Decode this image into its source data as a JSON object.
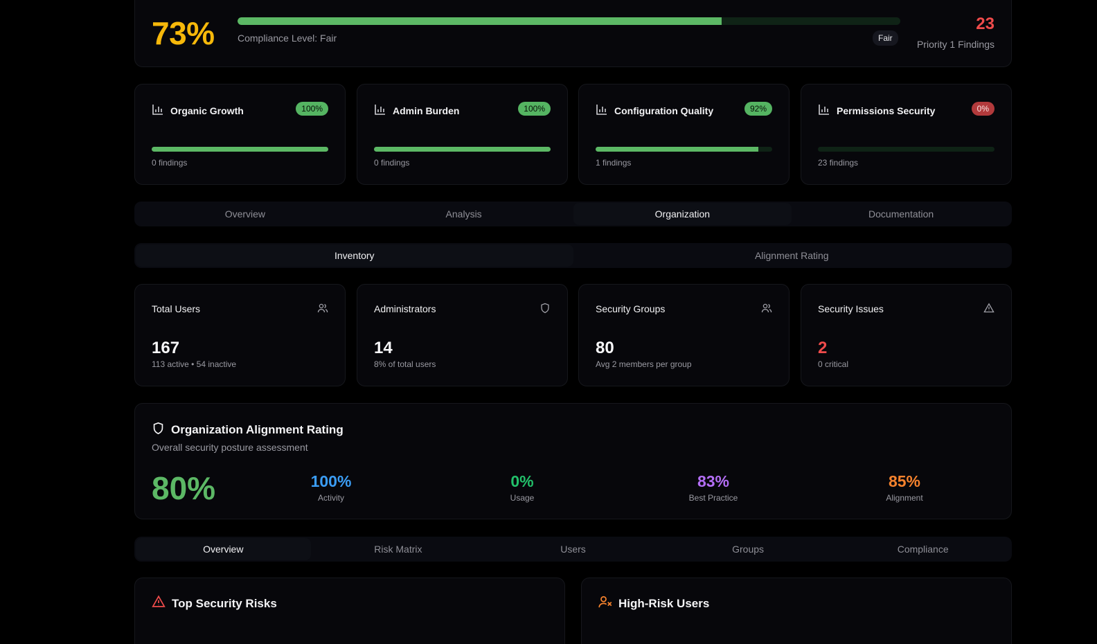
{
  "compliance": {
    "score": "73%",
    "progress": 0.73,
    "level_label": "Compliance Level: Fair",
    "pill": "Fair",
    "priority_count": "23",
    "priority_label": "Priority 1 Findings"
  },
  "metrics": [
    {
      "title": "Organic Growth",
      "badge": "100%",
      "progress": 1.0,
      "findings": "0 findings",
      "badge_color": "#55b462"
    },
    {
      "title": "Admin Burden",
      "badge": "100%",
      "progress": 1.0,
      "findings": "0 findings",
      "badge_color": "#55b462"
    },
    {
      "title": "Configuration Quality",
      "badge": "92%",
      "progress": 0.92,
      "findings": "1 findings",
      "badge_color": "#55b462"
    },
    {
      "title": "Permissions Security",
      "badge": "0%",
      "progress": 0.0,
      "findings": "23 findings",
      "badge_color": "#b23a3c"
    }
  ],
  "main_tabs": [
    "Overview",
    "Analysis",
    "Organization",
    "Documentation"
  ],
  "main_tabs_active": "Organization",
  "sub_tabs": [
    "Inventory",
    "Alignment Rating"
  ],
  "sub_tabs_active": "Inventory",
  "stats": [
    {
      "title": "Total Users",
      "value": "167",
      "sub": "113 active • 54 inactive",
      "icon": "users-icon"
    },
    {
      "title": "Administrators",
      "value": "14",
      "sub": "8% of total users",
      "icon": "shield-icon"
    },
    {
      "title": "Security Groups",
      "value": "80",
      "sub": "Avg 2 members per group",
      "icon": "users-icon"
    },
    {
      "title": "Security Issues",
      "value": "2",
      "sub": "0 critical",
      "icon": "alert-triangle-icon"
    }
  ],
  "alignment": {
    "title": "Organization Alignment Rating",
    "description": "Overall security posture assessment",
    "overall": "80%",
    "scores": [
      {
        "value": "100%",
        "label": "Activity",
        "color": "#3b9df5"
      },
      {
        "value": "0%",
        "label": "Usage",
        "color": "#22c06a"
      },
      {
        "value": "83%",
        "label": "Best Practice",
        "color": "#b36ef5"
      },
      {
        "value": "85%",
        "label": "Alignment",
        "color": "#f5822d"
      }
    ]
  },
  "detail_tabs": [
    "Overview",
    "Risk Matrix",
    "Users",
    "Groups",
    "Compliance"
  ],
  "detail_tabs_active": "Overview",
  "panels": {
    "top_risks": "Top Security Risks",
    "high_risk_users": "High-Risk Users"
  },
  "colors": {
    "accent_green": "#5cb865",
    "accent_yellow": "#f6b80a",
    "accent_red": "#ef4b4b",
    "accent_orange": "#f5822d"
  }
}
